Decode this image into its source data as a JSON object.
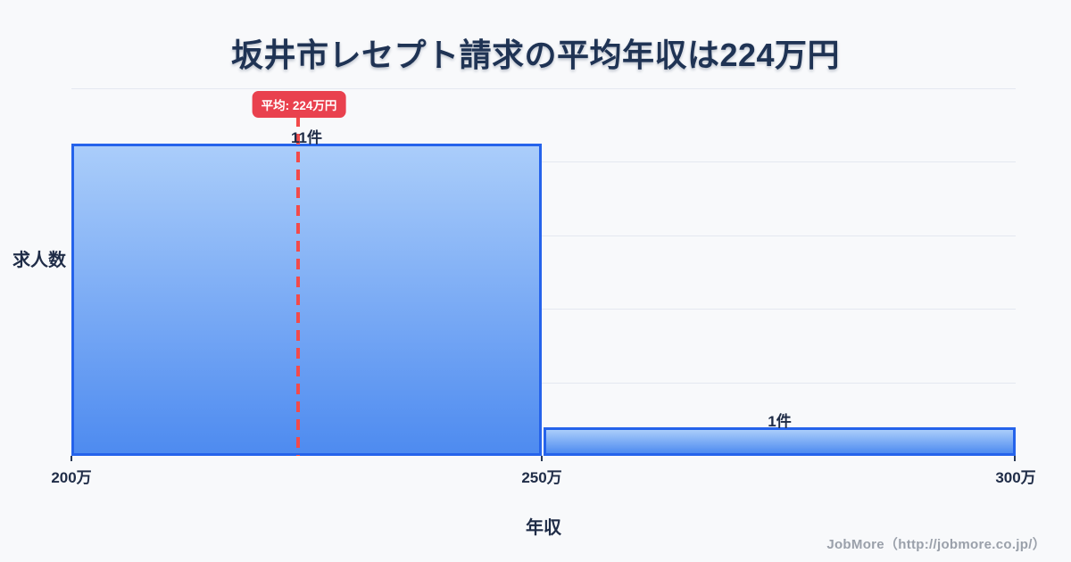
{
  "chart_data": {
    "type": "bar",
    "title": "坂井市レセプト請求の平均年収は224万円",
    "xlabel": "年収",
    "ylabel": "求人数",
    "categories": [
      "200万-250万",
      "250万-300万"
    ],
    "values": [
      11,
      1
    ],
    "bar_value_labels": [
      "11件",
      "1件"
    ],
    "x_tick_labels": [
      "200万",
      "250万",
      "300万"
    ],
    "ylim": [
      0,
      13
    ],
    "grid": "on",
    "legend": "none",
    "mean_annotation": {
      "label": "平均: 224万円",
      "value": 224,
      "unit": "万円",
      "style": "red dashed vertical line with red rounded badge"
    }
  },
  "colors": {
    "background": "#f8f9fb",
    "title_text": "#1f3354",
    "bar_border": "#2563eb",
    "bar_gradient_top": "#aacdfa",
    "bar_gradient_bottom": "#4e8bf0",
    "mean_line": "#f24a4a",
    "badge_background": "#e9414e",
    "badge_text": "#ffffff",
    "axis_text": "#1f2c47",
    "gridline": "#e4e8f0",
    "footer_text": "#9aa0aa"
  },
  "footer": {
    "credit": "JobMore（http://jobmore.co.jp/）"
  }
}
